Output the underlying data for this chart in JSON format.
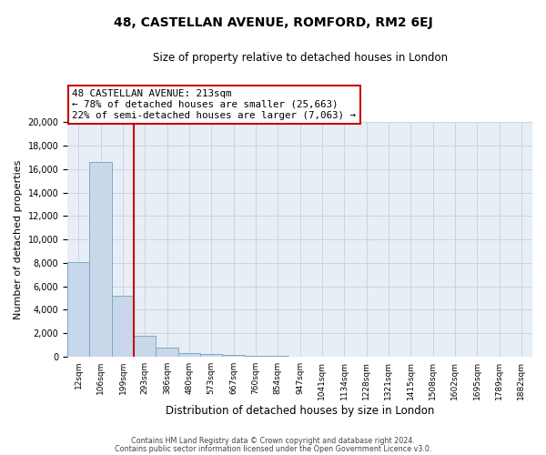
{
  "title": "48, CASTELLAN AVENUE, ROMFORD, RM2 6EJ",
  "subtitle": "Size of property relative to detached houses in London",
  "xlabel": "Distribution of detached houses by size in London",
  "ylabel": "Number of detached properties",
  "bar_color": "#c8d8ea",
  "bar_edge_color": "#7aaac8",
  "bar_edge_width": 0.7,
  "categories": [
    "12sqm",
    "106sqm",
    "199sqm",
    "293sqm",
    "386sqm",
    "480sqm",
    "573sqm",
    "667sqm",
    "760sqm",
    "854sqm",
    "947sqm",
    "1041sqm",
    "1134sqm",
    "1228sqm",
    "1321sqm",
    "1415sqm",
    "1508sqm",
    "1602sqm",
    "1695sqm",
    "1789sqm",
    "1882sqm"
  ],
  "values": [
    8100,
    16600,
    5200,
    1800,
    800,
    320,
    220,
    130,
    80,
    50,
    0,
    0,
    0,
    0,
    0,
    0,
    0,
    0,
    0,
    0,
    0
  ],
  "ylim": [
    0,
    20000
  ],
  "yticks": [
    0,
    2000,
    4000,
    6000,
    8000,
    10000,
    12000,
    14000,
    16000,
    18000,
    20000
  ],
  "property_line_color": "#cc0000",
  "property_line_bin": 2,
  "annotation_text_line1": "48 CASTELLAN AVENUE: 213sqm",
  "annotation_text_line2": "← 78% of detached houses are smaller (25,663)",
  "annotation_text_line3": "22% of semi-detached houses are larger (7,063) →",
  "footer_line1": "Contains HM Land Registry data © Crown copyright and database right 2024.",
  "footer_line2": "Contains public sector information licensed under the Open Government Licence v3.0.",
  "grid_color": "#c8d0dc",
  "bg_color": "#e8eef5"
}
